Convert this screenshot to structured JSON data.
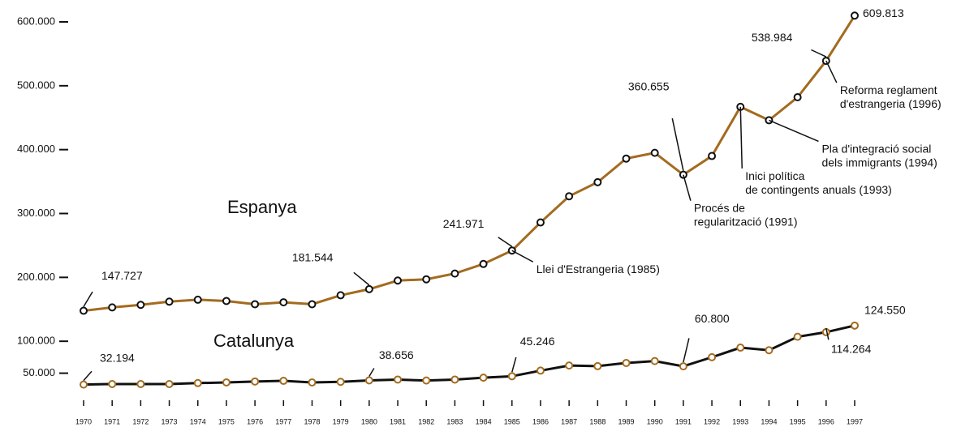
{
  "chart_data": {
    "type": "line",
    "x": [
      1970,
      1971,
      1972,
      1973,
      1974,
      1975,
      1976,
      1977,
      1978,
      1979,
      1980,
      1981,
      1982,
      1983,
      1984,
      1985,
      1986,
      1987,
      1988,
      1989,
      1990,
      1991,
      1992,
      1993,
      1994,
      1995,
      1996,
      1997
    ],
    "series": [
      {
        "name": "Espanya",
        "color": "#a36b1f",
        "marker_color": "#111111",
        "values": [
          147727,
          153000,
          157000,
          162000,
          165000,
          163000,
          158000,
          161000,
          158000,
          172000,
          181544,
          195000,
          197000,
          206000,
          221000,
          241971,
          286000,
          327000,
          349000,
          386000,
          395000,
          360655,
          390000,
          467000,
          446000,
          482000,
          538984,
          609813
        ],
        "value_labels": [
          "147.727",
          null,
          null,
          null,
          null,
          null,
          null,
          null,
          null,
          null,
          "181.544",
          null,
          null,
          null,
          null,
          "241.971",
          null,
          null,
          null,
          null,
          null,
          "360.655",
          null,
          null,
          null,
          null,
          "538.984",
          "609.813"
        ]
      },
      {
        "name": "Catalunya",
        "color": "#111111",
        "marker_color": "#a36b1f",
        "values": [
          32194,
          33000,
          33000,
          33000,
          34500,
          35500,
          37000,
          38000,
          35500,
          36500,
          38656,
          40000,
          38500,
          40000,
          43000,
          45246,
          54000,
          62000,
          61000,
          66000,
          69000,
          60800,
          75000,
          90000,
          86000,
          107000,
          114264,
          124550
        ],
        "value_labels": [
          "32.194",
          null,
          null,
          null,
          null,
          null,
          null,
          null,
          null,
          null,
          "38.656",
          null,
          null,
          null,
          null,
          "45.246",
          null,
          null,
          null,
          null,
          null,
          "60.800",
          null,
          null,
          null,
          null,
          "114.264",
          "124.550"
        ]
      }
    ],
    "annotations": [
      {
        "x": 1985,
        "text": [
          "Llei d'Estrangeria (1985)"
        ]
      },
      {
        "x": 1991,
        "text": [
          "Procés de",
          "regularització (1991)"
        ]
      },
      {
        "x": 1993,
        "text": [
          "Inici política",
          "de contingents anuals (1993)"
        ]
      },
      {
        "x": 1994,
        "text": [
          "Pla d'integració social",
          "dels immigrants (1994)"
        ]
      },
      {
        "x": 1996,
        "text": [
          "Reforma reglament",
          "d'estrangeria (1996)"
        ]
      }
    ],
    "xlim": [
      1970,
      1997
    ],
    "ylim": [
      0,
      600000
    ],
    "yticks": [
      {
        "value": 50000,
        "label": "50.000"
      },
      {
        "value": 100000,
        "label": "100.000"
      },
      {
        "value": 200000,
        "label": "200.000"
      },
      {
        "value": 300000,
        "label": "300.000"
      },
      {
        "value": 400000,
        "label": "400.000"
      },
      {
        "value": 500000,
        "label": "500.000"
      },
      {
        "value": 600000,
        "label": "600.000"
      }
    ]
  }
}
